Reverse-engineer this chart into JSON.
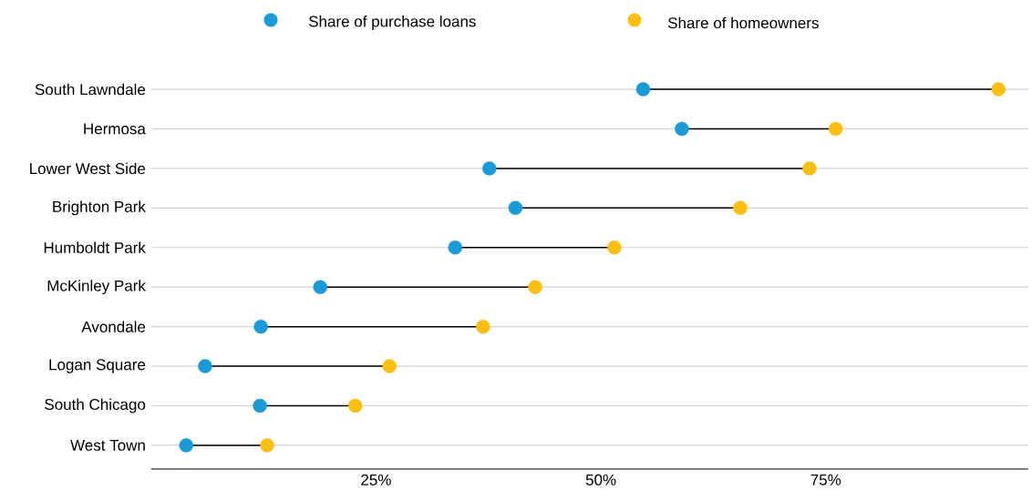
{
  "chart_data": {
    "type": "scatter",
    "orientation": "horizontal",
    "categories": [
      "South Lawndale",
      "Hermosa",
      "Lower West Side",
      "Brighton Park",
      "Humboldt Park",
      "McKinley Park",
      "Avondale",
      "Logan Square",
      "South Chicago",
      "West Town"
    ],
    "series": [
      {
        "name": "Share of purchase loans",
        "color": "#1a9bd7",
        "values": [
          54.7,
          59.0,
          37.6,
          40.5,
          33.8,
          18.8,
          12.2,
          6.0,
          12.1,
          3.9
        ]
      },
      {
        "name": "Share of homeowners",
        "color": "#fbbf14",
        "values": [
          94.2,
          76.1,
          73.2,
          65.5,
          51.5,
          42.7,
          36.9,
          26.5,
          22.7,
          12.9
        ]
      }
    ],
    "xlim": [
      0,
      97.5
    ],
    "xticks": [
      {
        "value": 25,
        "label": "25%"
      },
      {
        "value": 50,
        "label": "50%"
      },
      {
        "value": 75,
        "label": "75%"
      }
    ],
    "grid": "y",
    "legend": "top",
    "marker": "circle"
  }
}
